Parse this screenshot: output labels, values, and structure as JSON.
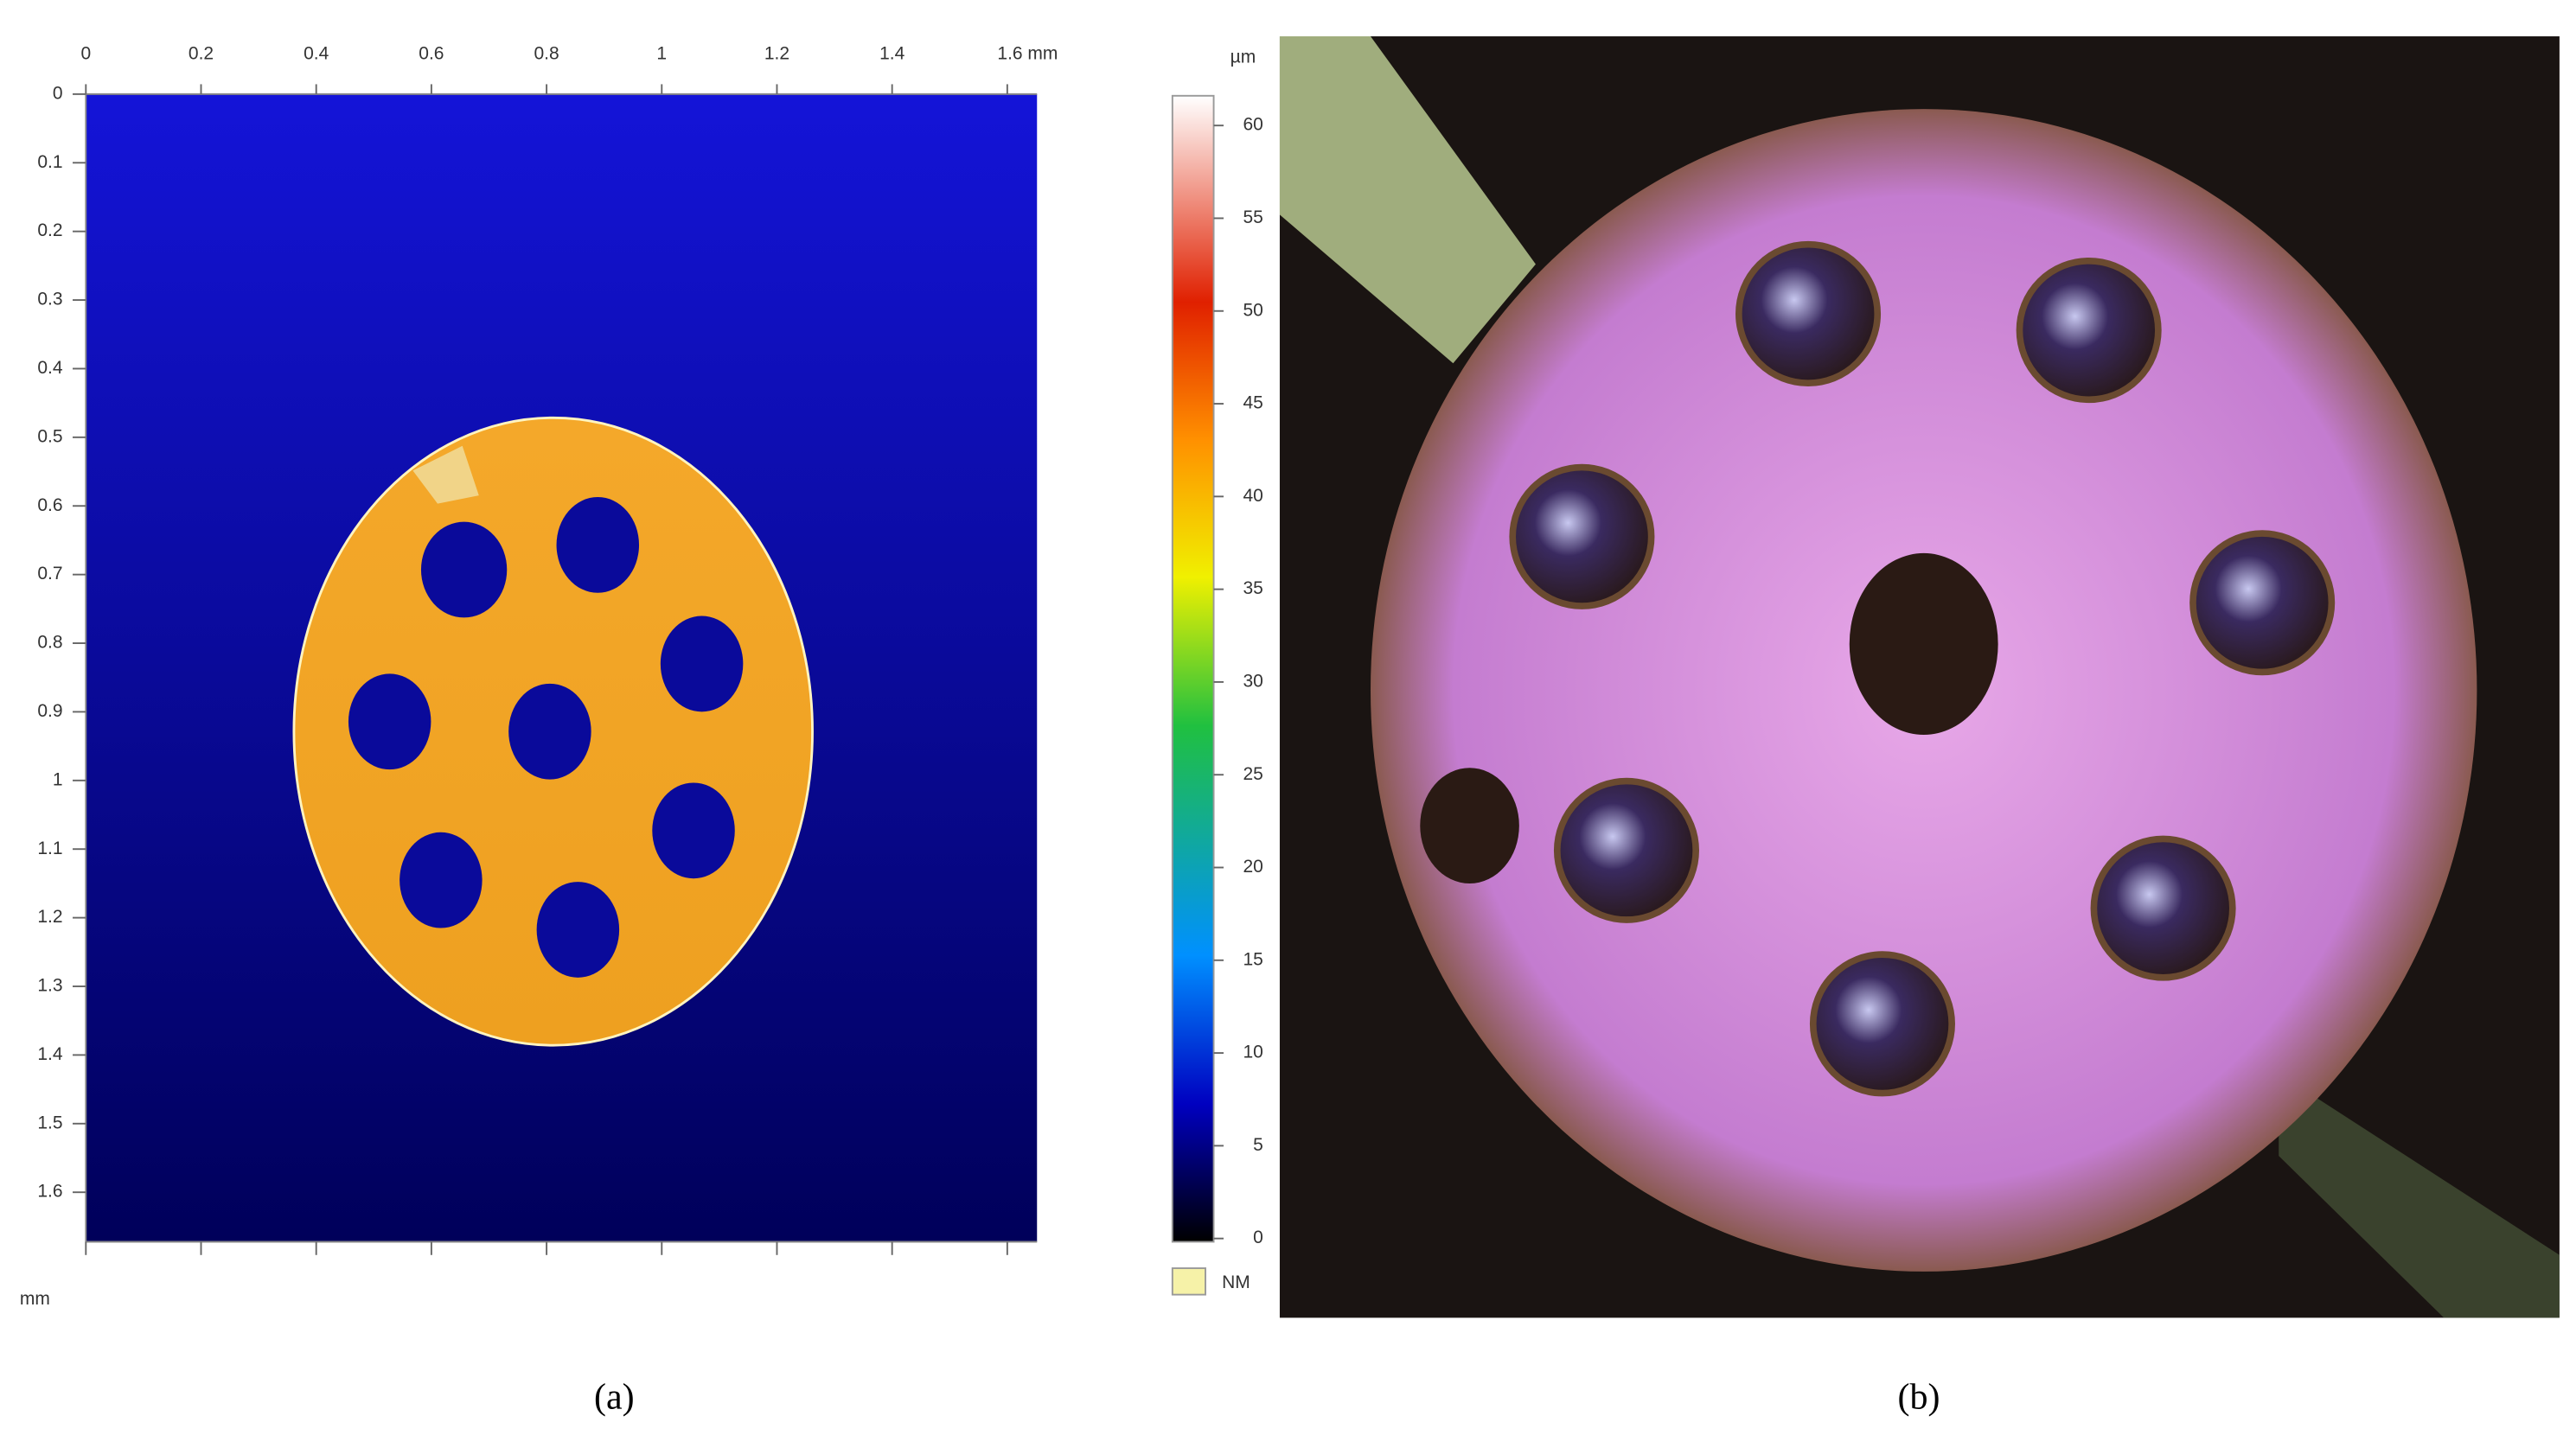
{
  "panel_a": {
    "x_ticks": [
      0,
      0.2,
      0.4,
      0.6,
      0.8,
      1,
      1.2,
      1.4,
      {
        "value": 1.6,
        "label": "1.6 mm"
      }
    ],
    "y_ticks": [
      0,
      0.1,
      0.2,
      0.3,
      0.4,
      0.5,
      0.6,
      0.7,
      0.8,
      0.9,
      1,
      1.1,
      1.2,
      1.3,
      1.4,
      1.5,
      1.6
    ],
    "y_unit": "mm",
    "colorbar": {
      "unit": "µm",
      "ticks": [
        0,
        5,
        10,
        15,
        20,
        25,
        30,
        35,
        40,
        45,
        50,
        55,
        60
      ],
      "nm_label": "NM"
    },
    "caption": "(a)"
  },
  "panel_b": {
    "caption": "(b)"
  }
}
